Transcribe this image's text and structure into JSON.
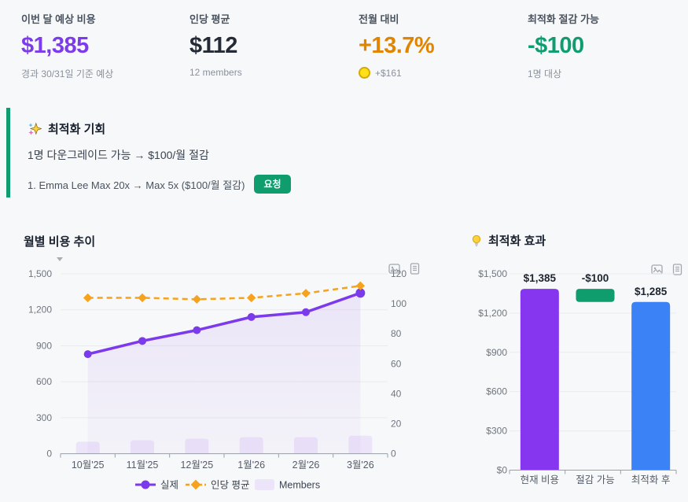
{
  "kpis": [
    {
      "label": "이번 달 예상 비용",
      "value": "$1,385",
      "sub": "경과 30/31일 기준 예상",
      "value_color": "#7d3bec"
    },
    {
      "label": "인당 평균",
      "value": "$112",
      "sub": "12 members",
      "value_color": "#252b36"
    },
    {
      "label": "전월 대비",
      "value": "+13.7%",
      "sub": "+$161",
      "value_color": "#e18400",
      "dot_color": "#ffe11a",
      "dot_border": "#d9a800"
    },
    {
      "label": "최적화 절감 가능",
      "value": "-$100",
      "sub": "1명 대상",
      "value_color": "#0f9d6e"
    }
  ],
  "banner": {
    "title": "최적화 기회",
    "summary": "1명 다운그레이드 가능 → $100/월 절감",
    "item": "1. Emma Lee Max 20x → Max 5x ($100/월 절감)",
    "request_label": "요청",
    "accent_color": "#0f9d6e"
  },
  "chart_data": [
    {
      "type": "line",
      "title": "월별 비용 추이",
      "categories": [
        "10월'25",
        "11월'25",
        "12월'25",
        "1월'26",
        "2월'26",
        "3월'26"
      ],
      "series": [
        {
          "name": "실제",
          "kind": "line",
          "axis": "left",
          "color": "#7c3aed",
          "values": [
            830,
            940,
            1030,
            1140,
            1180,
            1340
          ]
        },
        {
          "name": "인당 평균",
          "kind": "line",
          "dashed": true,
          "axis": "right",
          "color": "#f6a21c",
          "values": [
            104,
            104,
            103,
            104,
            107,
            112
          ]
        },
        {
          "name": "Members",
          "kind": "bar",
          "axis": "right",
          "color": "#ece4f8",
          "values": [
            8,
            9,
            10,
            11,
            11,
            12
          ]
        }
      ],
      "left_axis": {
        "min": 0,
        "max": 1500,
        "tick_labels": [
          "1,500",
          "1,200",
          "900",
          "600",
          "300",
          "0"
        ]
      },
      "right_axis": {
        "min": 0,
        "max": 120,
        "tick_labels": [
          "120",
          "100",
          "80",
          "60",
          "40",
          "20",
          "0"
        ]
      },
      "legend": [
        "실제",
        "인당 평균",
        "Members"
      ],
      "legend_position": "bottom",
      "grid": true
    },
    {
      "type": "bar",
      "title": "최적화 효과",
      "categories": [
        "현재 비용",
        "절감 가능",
        "최적화 후"
      ],
      "values": [
        1385,
        -100,
        1285
      ],
      "bar_labels": [
        "$1,385",
        "-$100",
        "$1,285"
      ],
      "bar_colors": [
        "#8636ee",
        "#0f9d6e",
        "#3b82f6"
      ],
      "waterfall": true,
      "ylim": [
        0,
        1500
      ],
      "y_tick_labels": [
        "$1,500",
        "$1,200",
        "$900",
        "$600",
        "$300",
        "$0"
      ],
      "grid": true
    }
  ]
}
